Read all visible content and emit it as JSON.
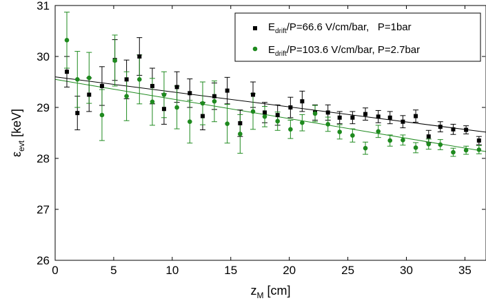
{
  "chart_data": {
    "type": "scatter",
    "title": "",
    "xlabel": {
      "main": "z",
      "sub": "M",
      "unit": " [cm]"
    },
    "ylabel": {
      "main": "ε",
      "sub": "evt",
      "unit": " [keV]"
    },
    "xlim": [
      0,
      36.8
    ],
    "ylim": [
      26,
      31
    ],
    "xticks": [
      0,
      5,
      10,
      15,
      20,
      25,
      30,
      35
    ],
    "yticks": [
      26,
      27,
      28,
      29,
      30,
      31
    ],
    "grid": false,
    "legend_position": "top-right",
    "series": [
      {
        "legend_main": "E",
        "legend_sub": "drift",
        "legend_rest": "/P=66.6 V/cm/bar,   P=1bar",
        "marker": "square",
        "color": "#000000",
        "fit": {
          "intercept": 29.6,
          "slope": -0.0295
        },
        "x": [
          1.0,
          1.9,
          2.9,
          4.0,
          5.1,
          6.1,
          7.2,
          8.3,
          9.3,
          10.4,
          11.5,
          12.6,
          13.6,
          14.7,
          15.8,
          16.9,
          17.9,
          19.0,
          20.1,
          21.1,
          22.2,
          23.3,
          24.3,
          25.4,
          26.5,
          27.6,
          28.6,
          29.7,
          30.8,
          31.9,
          32.9,
          34.0,
          35.1,
          36.2
        ],
        "y": [
          29.7,
          28.89,
          29.25,
          29.42,
          29.93,
          29.55,
          30.0,
          29.42,
          28.97,
          29.4,
          29.28,
          28.83,
          29.22,
          29.33,
          28.69,
          29.25,
          28.9,
          28.85,
          29.0,
          29.12,
          28.9,
          28.9,
          28.8,
          28.8,
          28.87,
          28.82,
          28.8,
          28.72,
          28.83,
          28.43,
          28.62,
          28.57,
          28.56,
          28.35
        ],
        "err": [
          0.3,
          0.33,
          0.33,
          0.38,
          0.4,
          0.38,
          0.37,
          0.35,
          0.3,
          0.3,
          0.28,
          0.27,
          0.26,
          0.26,
          0.26,
          0.25,
          0.2,
          0.2,
          0.2,
          0.2,
          0.15,
          0.15,
          0.12,
          0.12,
          0.12,
          0.12,
          0.12,
          0.12,
          0.12,
          0.12,
          0.1,
          0.1,
          0.08,
          0.08
        ]
      },
      {
        "legend_main": "E",
        "legend_sub": "drift",
        "legend_rest": "/P=103.6 V/cm/bar, P=2.7bar",
        "marker": "circle",
        "color": "#1e8a1e",
        "fit": {
          "intercept": 29.55,
          "slope": -0.0385
        },
        "x": [
          1.0,
          1.9,
          2.9,
          4.0,
          5.1,
          6.1,
          7.2,
          8.3,
          9.3,
          10.4,
          11.5,
          12.6,
          13.6,
          14.7,
          15.8,
          16.9,
          17.9,
          19.0,
          20.1,
          21.1,
          22.2,
          23.3,
          24.3,
          25.4,
          26.5,
          27.6,
          28.6,
          29.7,
          30.8,
          31.9,
          32.9,
          34.0,
          35.1,
          36.2
        ],
        "y": [
          30.32,
          29.55,
          29.58,
          28.85,
          29.92,
          29.22,
          29.55,
          29.11,
          29.25,
          29.0,
          28.72,
          29.08,
          29.12,
          28.68,
          28.48,
          28.92,
          28.82,
          28.73,
          28.57,
          28.7,
          28.88,
          28.67,
          28.52,
          28.45,
          28.2,
          28.53,
          28.35,
          28.36,
          28.21,
          28.28,
          28.27,
          28.12,
          28.16,
          28.17
        ],
        "err": [
          0.55,
          0.55,
          0.5,
          0.5,
          0.5,
          0.48,
          0.48,
          0.46,
          0.45,
          0.42,
          0.42,
          0.42,
          0.4,
          0.38,
          0.38,
          0.35,
          0.2,
          0.18,
          0.18,
          0.16,
          0.16,
          0.14,
          0.14,
          0.13,
          0.12,
          0.12,
          0.11,
          0.1,
          0.1,
          0.1,
          0.1,
          0.08,
          0.08,
          0.08
        ]
      }
    ]
  }
}
